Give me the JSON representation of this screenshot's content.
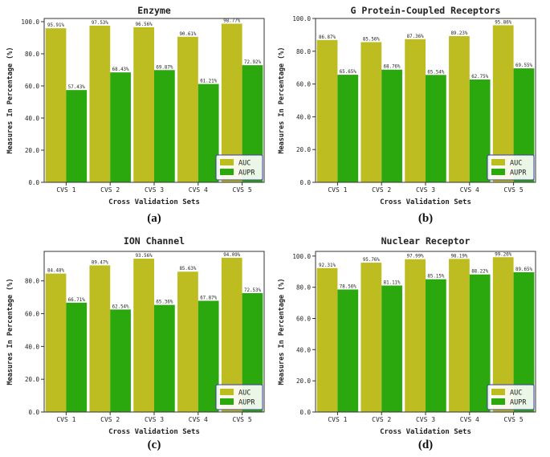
{
  "chart_data": [
    {
      "type": "bar",
      "title": "Enzyme",
      "panel_label": "(a)",
      "xlabel": "Cross Validation Sets",
      "ylabel": "Measures In Percentage (%)",
      "categories": [
        "CVS 1",
        "CVS 2",
        "CVS 3",
        "CVS 4",
        "CVS 5"
      ],
      "ylim": [
        0,
        102
      ],
      "yticks": [
        0,
        20,
        40,
        60,
        80,
        100
      ],
      "ytick_labels": [
        "0.0",
        "20.0",
        "40.0",
        "60.0",
        "80.0",
        "100.0"
      ],
      "legend_position": "bottom-right",
      "series": [
        {
          "name": "AUC",
          "color": "#bdbd22",
          "values": [
            95.91,
            97.53,
            96.56,
            90.61,
            98.77
          ],
          "labels": [
            "95.91%",
            "97.53%",
            "96.56%",
            "90.61%",
            "98.77%"
          ]
        },
        {
          "name": "AUPR",
          "color": "#2ca80f",
          "values": [
            57.43,
            68.43,
            69.87,
            61.21,
            72.92
          ],
          "labels": [
            "57.43%",
            "68.43%",
            "69.87%",
            "61.21%",
            "72.92%"
          ]
        }
      ]
    },
    {
      "type": "bar",
      "title": "G Protein-Coupled Receptors",
      "panel_label": "(b)",
      "xlabel": "Cross Validation Sets",
      "ylabel": "Measures In Percentage (%)",
      "categories": [
        "CVS 1",
        "CVS 2",
        "CVS 3",
        "CVS 4",
        "CVS 5"
      ],
      "ylim": [
        0,
        100
      ],
      "yticks": [
        0,
        20,
        40,
        60,
        80,
        100
      ],
      "ytick_labels": [
        "0.0",
        "20.0",
        "40.0",
        "60.0",
        "80.0",
        "100.0"
      ],
      "legend_position": "bottom-right",
      "series": [
        {
          "name": "AUC",
          "color": "#bdbd22",
          "values": [
            86.87,
            85.56,
            87.36,
            89.23,
            95.86
          ],
          "labels": [
            "86.87%",
            "85.56%",
            "87.36%",
            "89.23%",
            "95.86%"
          ]
        },
        {
          "name": "AUPR",
          "color": "#2ca80f",
          "values": [
            65.65,
            68.76,
            65.54,
            62.75,
            69.55
          ],
          "labels": [
            "65.65%",
            "68.76%",
            "65.54%",
            "62.75%",
            "69.55%"
          ]
        }
      ]
    },
    {
      "type": "bar",
      "title": "ION Channel",
      "panel_label": "(c)",
      "xlabel": "Cross Validation Sets",
      "ylabel": "Measures In Percentage (%)",
      "categories": [
        "CVS 1",
        "CVS 2",
        "CVS 3",
        "CVS 4",
        "CVS 5"
      ],
      "ylim": [
        0,
        98
      ],
      "yticks": [
        0,
        20,
        40,
        60,
        80
      ],
      "ytick_labels": [
        "0.0",
        "20.0",
        "40.0",
        "60.0",
        "80.0"
      ],
      "legend_position": "bottom-right",
      "series": [
        {
          "name": "AUC",
          "color": "#bdbd22",
          "values": [
            84.48,
            89.47,
            93.56,
            85.63,
            94.09
          ],
          "labels": [
            "84.48%",
            "89.47%",
            "93.56%",
            "85.63%",
            "94.09%"
          ]
        },
        {
          "name": "AUPR",
          "color": "#2ca80f",
          "values": [
            66.71,
            62.54,
            65.36,
            67.87,
            72.53
          ],
          "labels": [
            "66.71%",
            "62.54%",
            "65.36%",
            "67.87%",
            "72.53%"
          ]
        }
      ]
    },
    {
      "type": "bar",
      "title": "Nuclear Receptor",
      "panel_label": "(d)",
      "xlabel": "Cross Validation Sets",
      "ylabel": "Measures In Percentage (%)",
      "categories": [
        "CVS 1",
        "CVS 2",
        "CVS 3",
        "CVS 4",
        "CVS 5"
      ],
      "ylim": [
        0,
        103
      ],
      "yticks": [
        0,
        20,
        40,
        60,
        80,
        100
      ],
      "ytick_labels": [
        "0.0",
        "20.0",
        "40.0",
        "60.0",
        "80.0",
        "100.0"
      ],
      "legend_position": "bottom-right",
      "series": [
        {
          "name": "AUC",
          "color": "#bdbd22",
          "values": [
            92.31,
            95.76,
            97.99,
            98.19,
            99.26
          ],
          "labels": [
            "92.31%",
            "95.76%",
            "97.99%",
            "98.19%",
            "99.26%"
          ]
        },
        {
          "name": "AUPR",
          "color": "#2ca80f",
          "values": [
            78.56,
            81.11,
            85.15,
            88.22,
            89.65
          ],
          "labels": [
            "78.56%",
            "81.11%",
            "85.15%",
            "88.22%",
            "89.65%"
          ]
        }
      ]
    }
  ]
}
